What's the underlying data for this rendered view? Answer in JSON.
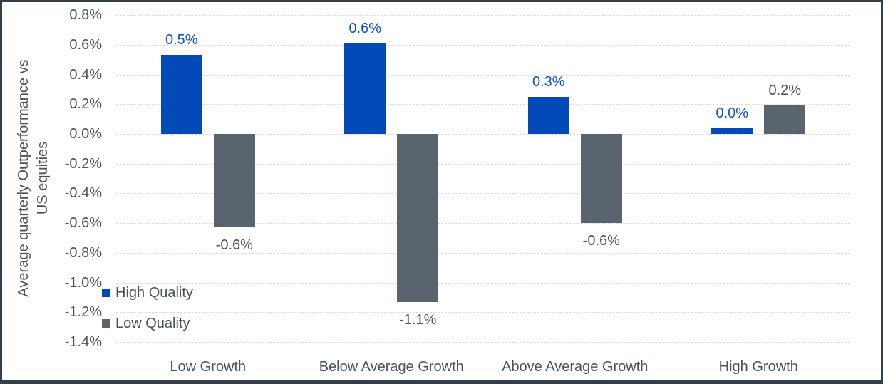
{
  "chart_data": {
    "type": "bar",
    "ylabel": "Average quarterly Outperformance vs US equities",
    "ylabel_lines": [
      "Average quarterly Outperformance vs",
      "US equities"
    ],
    "categories": [
      "Low Growth",
      "Below Average Growth",
      "Above Average Growth",
      "High Growth"
    ],
    "series": [
      {
        "name": "High Quality",
        "color": "#0449b8",
        "label_color": "#0b50c8",
        "values": [
          0.53,
          0.61,
          0.25,
          0.04
        ],
        "data_labels": [
          "0.5%",
          "0.6%",
          "0.3%",
          "0.0%"
        ]
      },
      {
        "name": "Low Quality",
        "color": "#59646e",
        "label_color": "#4b545e",
        "values": [
          -0.63,
          -1.13,
          -0.6,
          0.19
        ],
        "data_labels": [
          "-0.6%",
          "-1.1%",
          "-0.6%",
          "0.2%"
        ]
      }
    ],
    "y_axis": {
      "min": -1.4,
      "max": 0.8,
      "step": 0.2,
      "ticks": [
        "0.8%",
        "0.6%",
        "0.4%",
        "0.2%",
        "0.0%",
        "-0.2%",
        "-0.4%",
        "-0.6%",
        "-0.8%",
        "-1.0%",
        "-1.2%",
        "-1.4%"
      ]
    },
    "legend": {
      "position": "inside-bottom-left",
      "entries": [
        "High Quality",
        "Low Quality"
      ]
    },
    "grid": "horizontal-dashed"
  },
  "colors": {
    "high_quality_blue": "#0449b8",
    "low_quality_gray": "#59646e",
    "axis_text": "#49525c",
    "gridline": "#dcdcdc",
    "frame_border": "#343e49"
  }
}
